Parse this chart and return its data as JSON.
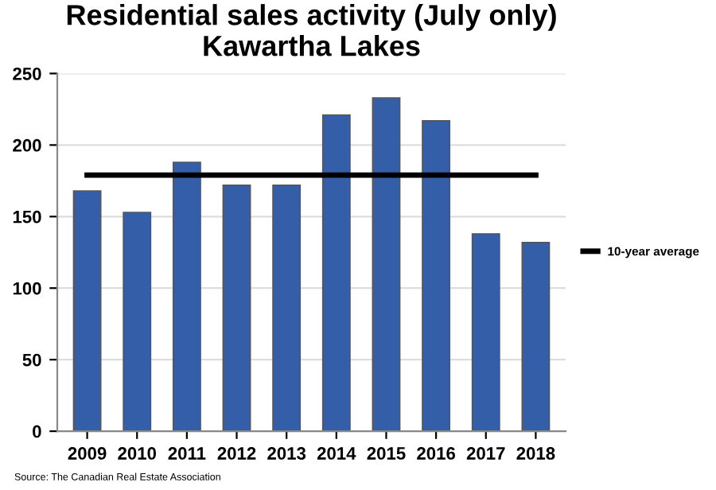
{
  "chart_data": {
    "type": "bar",
    "title": "Residential sales activity (July only)\nKawartha Lakes",
    "categories": [
      "2009",
      "2010",
      "2011",
      "2012",
      "2013",
      "2014",
      "2015",
      "2016",
      "2017",
      "2018"
    ],
    "series": [
      {
        "color": "#345ea8",
        "values": [
          168,
          153,
          188,
          172,
          172,
          221,
          233,
          217,
          138,
          132
        ]
      },
      {
        "type": "line",
        "name": "10-year average",
        "color": "#000000",
        "values": [
          179,
          179,
          179,
          179,
          179,
          179,
          179,
          179,
          179,
          179
        ]
      }
    ],
    "ylim": [
      0,
      250
    ],
    "yticks": [
      0,
      50,
      100,
      150,
      200,
      250
    ],
    "grid": "y",
    "legend": "right",
    "annotations": [
      "Source: The Canadian Real Estate Association"
    ]
  }
}
